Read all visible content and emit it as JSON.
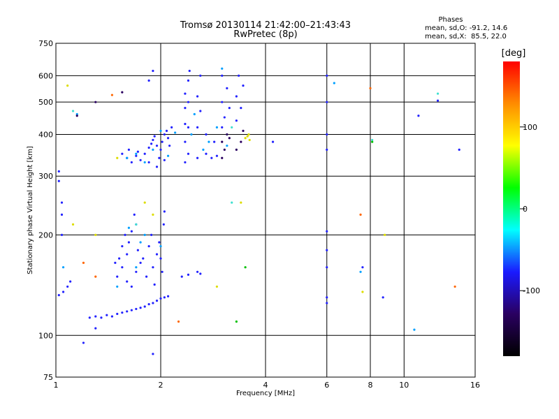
{
  "chart_data": {
    "type": "scatter",
    "title": "Tromsø 20130114 21:42:00–21:43:43",
    "subtitle": "RwPretec (8p)",
    "xlabel": "Frequency [MHz]",
    "ylabel": "Stationary phase Virtual Height [km]",
    "x_scale": "log",
    "y_scale": "log",
    "xlim": [
      1,
      16
    ],
    "ylim": [
      75,
      750
    ],
    "x_ticks": [
      1,
      2,
      4,
      6,
      8,
      10,
      16
    ],
    "y_ticks": [
      75,
      100,
      200,
      300,
      400,
      500,
      600,
      750
    ],
    "grid": true,
    "stats": {
      "heading": "Phases",
      "line_o": "mean, sd,O: -91.2, 14.6",
      "line_x": "mean, sd,X:  85.5, 22.0"
    },
    "colorbar": {
      "label": "[deg]",
      "ticks": [
        "100",
        "0",
        "-100"
      ],
      "tick_values": [
        100,
        0,
        -100
      ],
      "range": [
        -180,
        180
      ],
      "colors": [
        "#000000",
        "#2a0060",
        "#1a1aff",
        "#00ffff",
        "#00ff00",
        "#ffff00",
        "#ff8c00",
        "#ff0000"
      ]
    },
    "series": [
      {
        "color": "#2323ff",
        "points": [
          [
            1.02,
            132
          ],
          [
            1.05,
            135
          ],
          [
            1.08,
            140
          ],
          [
            1.1,
            145
          ],
          [
            1.25,
            113
          ],
          [
            1.3,
            114
          ],
          [
            1.35,
            113
          ],
          [
            1.4,
            115
          ],
          [
            1.45,
            114
          ],
          [
            1.5,
            116
          ],
          [
            1.55,
            117
          ],
          [
            1.6,
            118
          ],
          [
            1.65,
            119
          ],
          [
            1.7,
            120
          ],
          [
            1.75,
            121
          ],
          [
            1.8,
            122
          ],
          [
            1.85,
            124
          ],
          [
            1.9,
            125
          ],
          [
            1.95,
            127
          ],
          [
            2.0,
            129
          ],
          [
            2.05,
            130
          ],
          [
            2.1,
            131
          ],
          [
            1.5,
            150
          ],
          [
            1.55,
            160
          ],
          [
            1.6,
            175
          ],
          [
            1.62,
            190
          ],
          [
            1.65,
            205
          ],
          [
            1.7,
            215
          ],
          [
            1.68,
            230
          ],
          [
            1.72,
            180
          ],
          [
            1.75,
            165
          ],
          [
            1.6,
            145
          ],
          [
            1.65,
            140
          ],
          [
            1.7,
            155
          ],
          [
            1.78,
            170
          ],
          [
            1.82,
            150
          ],
          [
            1.85,
            185
          ],
          [
            1.88,
            200
          ],
          [
            1.9,
            160
          ],
          [
            1.95,
            175
          ],
          [
            1.98,
            190
          ],
          [
            2.0,
            170
          ],
          [
            2.02,
            155
          ],
          [
            2.04,
            215
          ],
          [
            2.05,
            235
          ],
          [
            1.92,
            142
          ],
          [
            1.58,
            200
          ],
          [
            1.55,
            185
          ],
          [
            1.52,
            170
          ],
          [
            1.48,
            165
          ],
          [
            2.3,
            150
          ],
          [
            2.4,
            152
          ],
          [
            2.55,
            155
          ],
          [
            2.6,
            153
          ],
          [
            1.55,
            350
          ],
          [
            1.6,
            340
          ],
          [
            1.62,
            360
          ],
          [
            1.65,
            330
          ],
          [
            1.7,
            345
          ],
          [
            1.72,
            355
          ],
          [
            1.75,
            335
          ],
          [
            1.8,
            350
          ],
          [
            1.85,
            365
          ],
          [
            1.88,
            375
          ],
          [
            1.9,
            385
          ],
          [
            1.92,
            395
          ],
          [
            1.95,
            370
          ],
          [
            1.98,
            340
          ],
          [
            2.0,
            360
          ],
          [
            2.02,
            380
          ],
          [
            2.05,
            400
          ],
          [
            2.08,
            410
          ],
          [
            2.1,
            390
          ],
          [
            2.12,
            370
          ],
          [
            2.15,
            420
          ],
          [
            1.85,
            330
          ],
          [
            1.95,
            320
          ],
          [
            2.05,
            335
          ],
          [
            2.35,
            330
          ],
          [
            2.35,
            380
          ],
          [
            2.35,
            430
          ],
          [
            2.35,
            480
          ],
          [
            2.35,
            530
          ],
          [
            2.4,
            350
          ],
          [
            2.4,
            420
          ],
          [
            2.4,
            500
          ],
          [
            2.4,
            580
          ],
          [
            2.42,
            620
          ],
          [
            2.55,
            340
          ],
          [
            2.55,
            420
          ],
          [
            2.55,
            520
          ],
          [
            2.6,
            470
          ],
          [
            2.6,
            600
          ],
          [
            2.7,
            350
          ],
          [
            2.8,
            340
          ],
          [
            2.9,
            345
          ],
          [
            2.7,
            400
          ],
          [
            2.85,
            380
          ],
          [
            3.0,
            420
          ],
          [
            3.0,
            500
          ],
          [
            3.0,
            600
          ],
          [
            3.05,
            450
          ],
          [
            3.1,
            550
          ],
          [
            3.15,
            480
          ],
          [
            3.3,
            440
          ],
          [
            3.3,
            520
          ],
          [
            3.35,
            600
          ],
          [
            3.4,
            480
          ],
          [
            3.45,
            560
          ],
          [
            1.02,
            310
          ],
          [
            1.02,
            290
          ],
          [
            1.04,
            250
          ],
          [
            1.04,
            230
          ],
          [
            1.04,
            200
          ],
          [
            1.3,
            105
          ],
          [
            1.9,
            88
          ],
          [
            1.9,
            620
          ],
          [
            1.85,
            580
          ],
          [
            1.2,
            95
          ],
          [
            6.0,
            600
          ],
          [
            6.0,
            500
          ],
          [
            6.0,
            400
          ],
          [
            6.0,
            360
          ],
          [
            6.0,
            205
          ],
          [
            6.0,
            180
          ],
          [
            6.0,
            160
          ],
          [
            6.0,
            130
          ],
          [
            6.0,
            125
          ],
          [
            7.6,
            160
          ],
          [
            8.7,
            130
          ],
          [
            12.5,
            505
          ],
          [
            14.4,
            360
          ],
          [
            11.0,
            455
          ],
          [
            4.2,
            380
          ]
        ]
      },
      {
        "color": "#00a0ff",
        "points": [
          [
            1.7,
            350
          ],
          [
            1.9,
            360
          ],
          [
            2.1,
            345
          ],
          [
            2.45,
            400
          ],
          [
            2.65,
            360
          ],
          [
            2.75,
            380
          ],
          [
            3.1,
            370
          ],
          [
            2.2,
            405
          ],
          [
            1.6,
            340
          ],
          [
            1.8,
            330
          ],
          [
            2.5,
            460
          ],
          [
            2.9,
            420
          ],
          [
            1.8,
            200
          ],
          [
            1.62,
            210
          ],
          [
            1.75,
            190
          ],
          [
            2.0,
            185
          ],
          [
            1.7,
            160
          ],
          [
            1.15,
            460
          ],
          [
            1.05,
            160
          ],
          [
            1.5,
            140
          ],
          [
            3.0,
            630
          ],
          [
            6.3,
            570
          ],
          [
            7.5,
            155
          ],
          [
            10.7,
            104
          ],
          [
            2.0,
            410
          ]
        ]
      },
      {
        "color": "#40e0d0",
        "points": [
          [
            3.2,
            250
          ],
          [
            1.7,
            215
          ],
          [
            12.5,
            530
          ],
          [
            8.1,
            385
          ],
          [
            3.2,
            420
          ],
          [
            1.12,
            470
          ]
        ]
      },
      {
        "color": "#dddd00",
        "points": [
          [
            3.5,
            390
          ],
          [
            3.55,
            395
          ],
          [
            3.6,
            385
          ],
          [
            3.58,
            400
          ],
          [
            1.5,
            340
          ],
          [
            1.08,
            560
          ],
          [
            1.12,
            215
          ],
          [
            2.9,
            140
          ],
          [
            1.3,
            200
          ],
          [
            3.4,
            250
          ],
          [
            1.9,
            230
          ],
          [
            1.8,
            250
          ],
          [
            7.6,
            135
          ],
          [
            8.8,
            200
          ]
        ]
      },
      {
        "color": "#2a0060",
        "points": [
          [
            3.0,
            380
          ],
          [
            3.05,
            360
          ],
          [
            3.1,
            400
          ],
          [
            3.15,
            390
          ],
          [
            3.3,
            360
          ],
          [
            3.4,
            380
          ],
          [
            3.45,
            410
          ],
          [
            3.0,
            340
          ],
          [
            1.55,
            535
          ],
          [
            1.3,
            500
          ],
          [
            1.15,
            455
          ]
        ]
      },
      {
        "color": "#ff6600",
        "points": [
          [
            1.3,
            150
          ],
          [
            2.25,
            110
          ],
          [
            7.5,
            230
          ],
          [
            14.0,
            140
          ],
          [
            8.0,
            550
          ],
          [
            1.45,
            525
          ],
          [
            1.2,
            165
          ]
        ]
      },
      {
        "color": "#00c000",
        "points": [
          [
            3.5,
            160
          ],
          [
            3.3,
            110
          ],
          [
            8.1,
            380
          ]
        ]
      }
    ]
  }
}
